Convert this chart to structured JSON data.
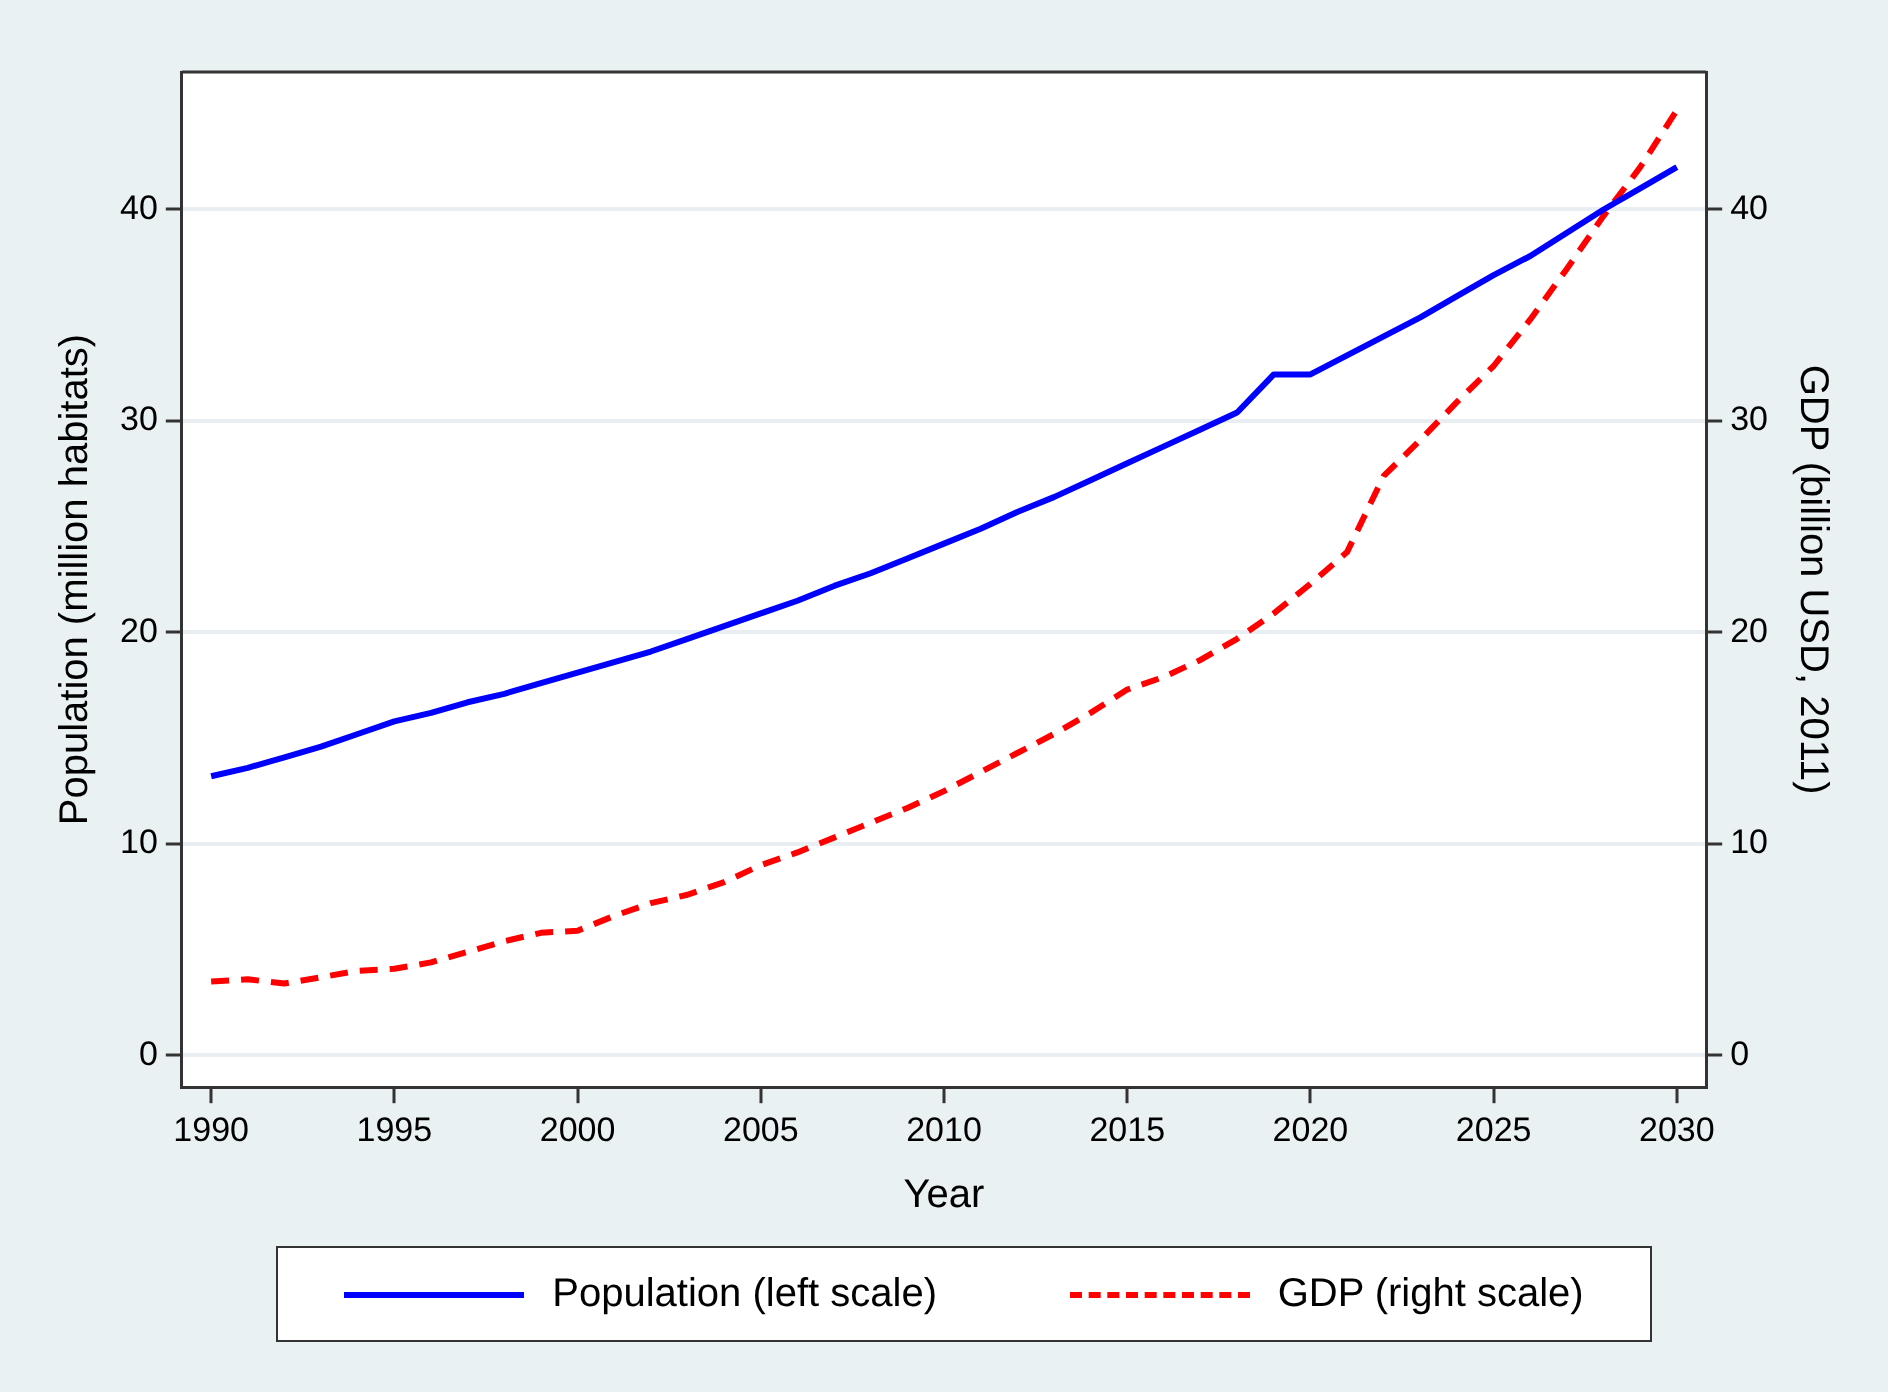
{
  "chart_data": {
    "type": "line",
    "xlabel": "Year",
    "ylabel": "Population (million habitats)",
    "y2label": "GDP (billion USD, 2011)",
    "x": [
      1990,
      1991,
      1992,
      1993,
      1994,
      1995,
      1996,
      1997,
      1998,
      1999,
      2000,
      2001,
      2002,
      2003,
      2004,
      2005,
      2006,
      2007,
      2008,
      2009,
      2010,
      2011,
      2012,
      2013,
      2014,
      2015,
      2016,
      2017,
      2018,
      2019,
      2020,
      2021,
      2022,
      2023,
      2024,
      2025,
      2026,
      2027,
      2028,
      2029,
      2030
    ],
    "series": [
      {
        "name": "Population (left scale)",
        "color": "#0000ff",
        "line_style": "solid",
        "values": [
          13.2,
          13.6,
          14.1,
          14.6,
          15.2,
          15.8,
          16.2,
          16.7,
          17.1,
          17.6,
          18.1,
          18.6,
          19.1,
          19.7,
          20.3,
          20.9,
          21.5,
          22.2,
          22.8,
          23.5,
          24.2,
          24.9,
          25.7,
          26.4,
          27.2,
          28.0,
          28.8,
          29.6,
          30.4,
          32.2,
          32.2,
          33.1,
          34.0,
          34.9,
          35.9,
          36.9,
          37.8,
          38.9,
          40.0,
          41.0,
          42.0
        ]
      },
      {
        "name": "GDP (right scale)",
        "color": "#ff0000",
        "line_style": "dashed",
        "axis": "y2",
        "values": [
          3.5,
          3.6,
          3.4,
          3.7,
          4.0,
          4.1,
          4.4,
          4.9,
          5.4,
          5.8,
          5.9,
          6.6,
          7.2,
          7.6,
          8.2,
          9.0,
          9.6,
          10.3,
          11.0,
          11.7,
          12.5,
          13.4,
          14.3,
          15.2,
          16.2,
          17.3,
          17.9,
          18.7,
          19.7,
          20.9,
          22.3,
          23.8,
          27.4,
          29.1,
          30.9,
          32.6,
          34.8,
          37.2,
          39.7,
          42.0,
          44.7
        ]
      }
    ],
    "xlim": [
      1989.2,
      2030.8
    ],
    "xticks": [
      1990,
      1995,
      2000,
      2005,
      2010,
      2015,
      2020,
      2025,
      2030
    ],
    "ylim": [
      -1.5,
      46.5
    ],
    "yticks": [
      0,
      10,
      20,
      30,
      40
    ],
    "y2lim": [
      -1.5,
      46.5
    ],
    "y2ticks": [
      0,
      10,
      20,
      30,
      40
    ],
    "grid": "y",
    "legend": "bottom",
    "marker": "none"
  }
}
